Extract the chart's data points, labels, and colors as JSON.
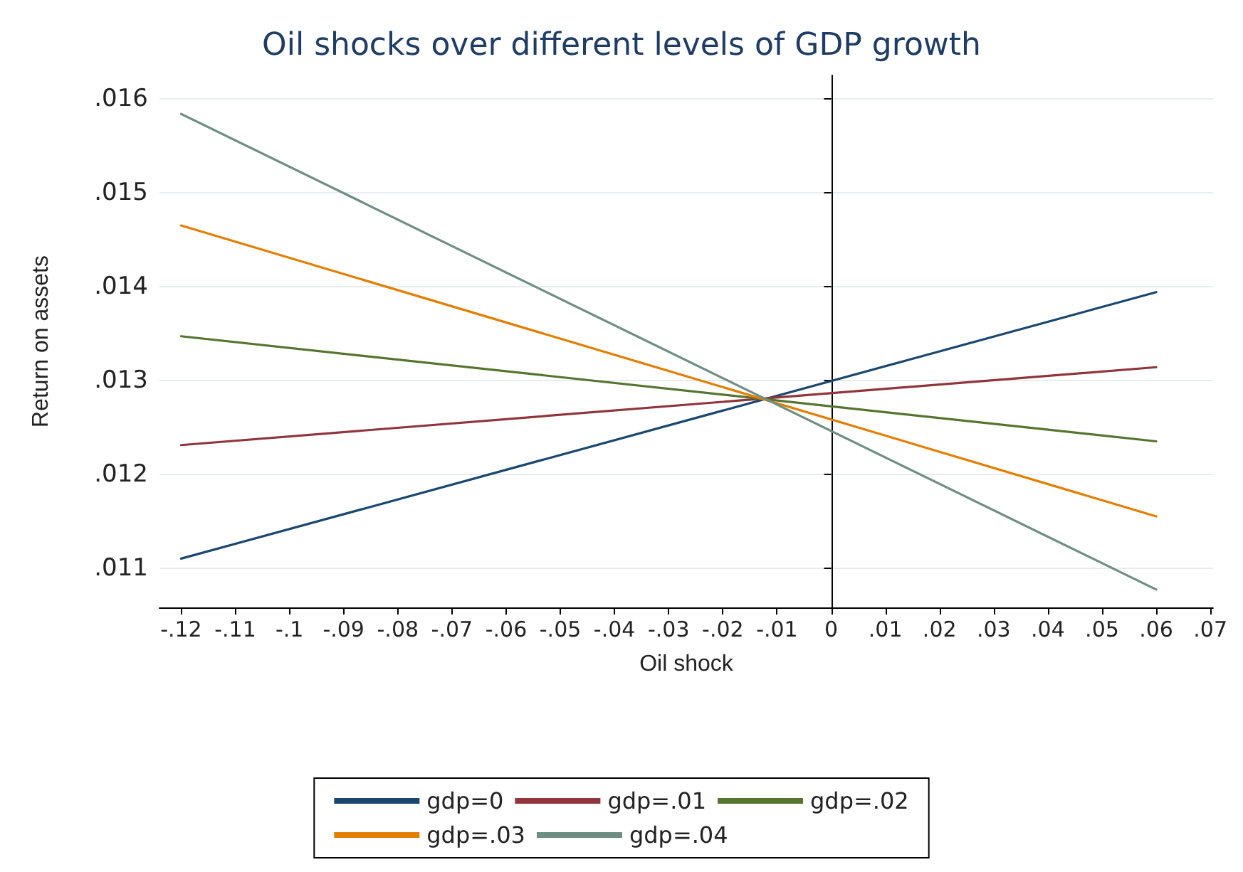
{
  "chart_data": {
    "type": "line",
    "title": "Oil shocks over different levels of GDP growth",
    "xlabel": "Oil shock",
    "ylabel": "Return on assets",
    "x": [
      -0.12,
      0.06
    ],
    "series": [
      {
        "name": "gdp=0",
        "color": "#1a476f",
        "values": [
          0.0111,
          0.01394
        ]
      },
      {
        "name": "gdp=.01",
        "color": "#90353b",
        "values": [
          0.01231,
          0.01314
        ]
      },
      {
        "name": "gdp=.02",
        "color": "#55752f",
        "values": [
          0.01347,
          0.01235
        ]
      },
      {
        "name": "gdp=.03",
        "color": "#e37e00",
        "values": [
          0.01465,
          0.01155
        ]
      },
      {
        "name": "gdp=.04",
        "color": "#6e8e84",
        "values": [
          0.01584,
          0.01077
        ]
      }
    ],
    "xlim": [
      -0.124,
      0.0705
    ],
    "xticks": [
      {
        "value": -0.12,
        "label": "-.12"
      },
      {
        "value": -0.11,
        "label": "-.11"
      },
      {
        "value": -0.1,
        "label": "-.1"
      },
      {
        "value": -0.09,
        "label": "-.09"
      },
      {
        "value": -0.08,
        "label": "-.08"
      },
      {
        "value": -0.07,
        "label": "-.07"
      },
      {
        "value": -0.06,
        "label": "-.06"
      },
      {
        "value": -0.05,
        "label": "-.05"
      },
      {
        "value": -0.04,
        "label": "-.04"
      },
      {
        "value": -0.03,
        "label": "-.03"
      },
      {
        "value": -0.02,
        "label": "-.02"
      },
      {
        "value": -0.01,
        "label": "-.01"
      },
      0,
      {
        "value": 0.01,
        "label": ".01"
      },
      {
        "value": 0.02,
        "label": ".02"
      },
      {
        "value": 0.03,
        "label": ".03"
      },
      {
        "value": 0.04,
        "label": ".04"
      },
      {
        "value": 0.05,
        "label": ".05"
      },
      {
        "value": 0.06,
        "label": ".06"
      },
      {
        "value": 0.07,
        "label": ".07"
      }
    ],
    "ylim": [
      0.01058,
      0.01625
    ],
    "yticks": [
      {
        "value": 0.011,
        "label": ".011"
      },
      {
        "value": 0.012,
        "label": ".012"
      },
      {
        "value": 0.013,
        "label": ".013"
      },
      {
        "value": 0.014,
        "label": ".014"
      },
      {
        "value": 0.015,
        "label": ".015"
      },
      {
        "value": 0.016,
        "label": ".016"
      }
    ],
    "grid": "y",
    "legend": "bottom",
    "marker": "none",
    "line_style": "solid"
  }
}
